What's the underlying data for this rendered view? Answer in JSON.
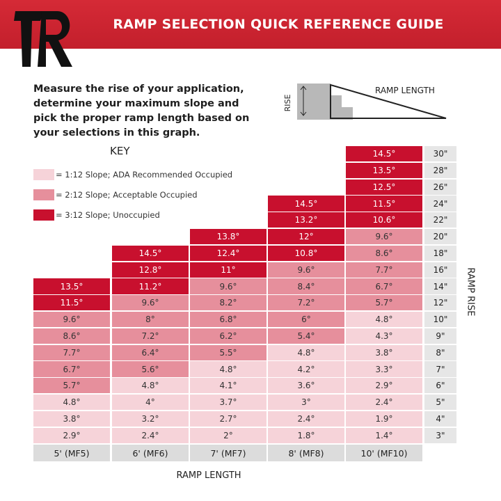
{
  "header": {
    "title": "RAMP SELECTION QUICK REFERENCE GUIDE"
  },
  "intro": "Measure the rise of your application, determine your maximum slope and pick the proper ramp length based on your selections in this graph.",
  "diagram": {
    "rise": "RISE",
    "length": "RAMP LENGTH"
  },
  "key": {
    "title": "KEY",
    "items": [
      {
        "label": "= 1:12 Slope; ADA Recommended Occupied",
        "color": "#f6d3d9"
      },
      {
        "label": "= 2:12 Slope; Acceptable Occupied",
        "color": "#e68f9c"
      },
      {
        "label": "= 3:12 Slope; Unoccupied",
        "color": "#c8102e"
      }
    ]
  },
  "table": {
    "columns": [
      "5' (MF5)",
      "6' (MF6)",
      "7' (MF7)",
      "8' (MF8)",
      "10' (MF10)"
    ],
    "rows": [
      {
        "rise": "30\"",
        "cells": [
          null,
          null,
          null,
          null,
          {
            "text": "14.5°",
            "key": 2
          }
        ]
      },
      {
        "rise": "28\"",
        "cells": [
          null,
          null,
          null,
          null,
          {
            "text": "13.5°",
            "key": 2
          }
        ]
      },
      {
        "rise": "26\"",
        "cells": [
          null,
          null,
          null,
          null,
          {
            "text": "12.5°",
            "key": 2
          }
        ]
      },
      {
        "rise": "24\"",
        "cells": [
          null,
          null,
          null,
          {
            "text": "14.5°",
            "key": 2
          },
          {
            "text": "11.5°",
            "key": 2
          }
        ]
      },
      {
        "rise": "22\"",
        "cells": [
          null,
          null,
          null,
          {
            "text": "13.2°",
            "key": 2
          },
          {
            "text": "10.6°",
            "key": 2
          }
        ]
      },
      {
        "rise": "20\"",
        "cells": [
          null,
          null,
          {
            "text": "13.8°",
            "key": 2
          },
          {
            "text": "12°",
            "key": 2
          },
          {
            "text": "9.6°",
            "key": 1
          }
        ]
      },
      {
        "rise": "18\"",
        "cells": [
          null,
          {
            "text": "14.5°",
            "key": 2
          },
          {
            "text": "12.4°",
            "key": 2
          },
          {
            "text": "10.8°",
            "key": 2
          },
          {
            "text": "8.6°",
            "key": 1
          }
        ]
      },
      {
        "rise": "16\"",
        "cells": [
          null,
          {
            "text": "12.8°",
            "key": 2
          },
          {
            "text": "11°",
            "key": 2
          },
          {
            "text": "9.6°",
            "key": 1
          },
          {
            "text": "7.7°",
            "key": 1
          }
        ]
      },
      {
        "rise": "14\"",
        "cells": [
          {
            "text": "13.5°",
            "key": 2
          },
          {
            "text": "11.2°",
            "key": 2
          },
          {
            "text": "9.6°",
            "key": 1
          },
          {
            "text": "8.4°",
            "key": 1
          },
          {
            "text": "6.7°",
            "key": 1
          }
        ]
      },
      {
        "rise": "12\"",
        "cells": [
          {
            "text": "11.5°",
            "key": 2
          },
          {
            "text": "9.6°",
            "key": 1
          },
          {
            "text": "8.2°",
            "key": 1
          },
          {
            "text": "7.2°",
            "key": 1
          },
          {
            "text": "5.7°",
            "key": 1
          }
        ]
      },
      {
        "rise": "10\"",
        "cells": [
          {
            "text": "9.6°",
            "key": 1
          },
          {
            "text": "8°",
            "key": 1
          },
          {
            "text": "6.8°",
            "key": 1
          },
          {
            "text": "6°",
            "key": 1
          },
          {
            "text": "4.8°",
            "key": 0
          }
        ]
      },
      {
        "rise": "9\"",
        "cells": [
          {
            "text": "8.6°",
            "key": 1
          },
          {
            "text": "7.2°",
            "key": 1
          },
          {
            "text": "6.2°",
            "key": 1
          },
          {
            "text": "5.4°",
            "key": 1
          },
          {
            "text": "4.3°",
            "key": 0
          }
        ]
      },
      {
        "rise": "8\"",
        "cells": [
          {
            "text": "7.7°",
            "key": 1
          },
          {
            "text": "6.4°",
            "key": 1
          },
          {
            "text": "5.5°",
            "key": 1
          },
          {
            "text": "4.8°",
            "key": 0
          },
          {
            "text": "3.8°",
            "key": 0
          }
        ]
      },
      {
        "rise": "7\"",
        "cells": [
          {
            "text": "6.7°",
            "key": 1
          },
          {
            "text": "5.6°",
            "key": 1
          },
          {
            "text": "4.8°",
            "key": 0
          },
          {
            "text": "4.2°",
            "key": 0
          },
          {
            "text": "3.3°",
            "key": 0
          }
        ]
      },
      {
        "rise": "6\"",
        "cells": [
          {
            "text": "5.7°",
            "key": 1
          },
          {
            "text": "4.8°",
            "key": 0
          },
          {
            "text": "4.1°",
            "key": 0
          },
          {
            "text": "3.6°",
            "key": 0
          },
          {
            "text": "2.9°",
            "key": 0
          }
        ]
      },
      {
        "rise": "5\"",
        "cells": [
          {
            "text": "4.8°",
            "key": 0
          },
          {
            "text": "4°",
            "key": 0
          },
          {
            "text": "3.7°",
            "key": 0
          },
          {
            "text": "3°",
            "key": 0
          },
          {
            "text": "2.4°",
            "key": 0
          }
        ]
      },
      {
        "rise": "4\"",
        "cells": [
          {
            "text": "3.8°",
            "key": 0
          },
          {
            "text": "3.2°",
            "key": 0
          },
          {
            "text": "2.7°",
            "key": 0
          },
          {
            "text": "2.4°",
            "key": 0
          },
          {
            "text": "1.9°",
            "key": 0
          }
        ]
      },
      {
        "rise": "3\"",
        "cells": [
          {
            "text": "2.9°",
            "key": 0
          },
          {
            "text": "2.4°",
            "key": 0
          },
          {
            "text": "2°",
            "key": 0
          },
          {
            "text": "1.8°",
            "key": 0
          },
          {
            "text": "1.4°",
            "key": 0
          }
        ]
      }
    ],
    "x_label": "RAMP LENGTH",
    "y_label": "RAMP RISE"
  }
}
